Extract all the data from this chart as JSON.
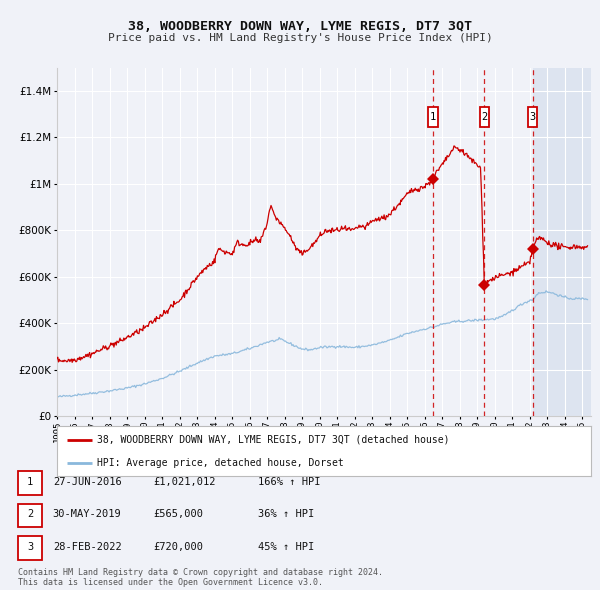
{
  "title": "38, WOODBERRY DOWN WAY, LYME REGIS, DT7 3QT",
  "subtitle": "Price paid vs. HM Land Registry's House Price Index (HPI)",
  "legend_red": "38, WOODBERRY DOWN WAY, LYME REGIS, DT7 3QT (detached house)",
  "legend_blue": "HPI: Average price, detached house, Dorset",
  "footer1": "Contains HM Land Registry data © Crown copyright and database right 2024.",
  "footer2": "This data is licensed under the Open Government Licence v3.0.",
  "transactions": [
    {
      "num": 1,
      "date": "27-JUN-2016",
      "date_x": 2016.49,
      "price": 1021012,
      "label": "£1,021,012",
      "pct": "166% ↑ HPI"
    },
    {
      "num": 2,
      "date": "30-MAY-2019",
      "date_x": 2019.41,
      "price": 565000,
      "label": "£565,000",
      "pct": "36% ↑ HPI"
    },
    {
      "num": 3,
      "date": "28-FEB-2022",
      "date_x": 2022.16,
      "price": 720000,
      "label": "£720,000",
      "pct": "45% ↑ HPI"
    }
  ],
  "ylim": [
    0,
    1500000
  ],
  "xlim_start": 1995.0,
  "xlim_end": 2025.5,
  "fig_bg": "#f0f2f8",
  "plot_bg": "#f0f2f8",
  "grid_color": "#ffffff",
  "red_line_color": "#cc0000",
  "blue_line_color": "#8ab8dc",
  "highlight_bg": "#dde4f0",
  "legend_border": "#bbbbbb"
}
